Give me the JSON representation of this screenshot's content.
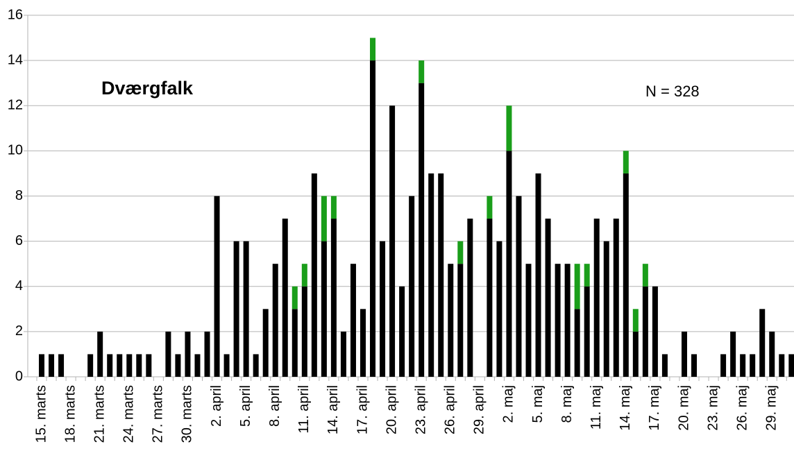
{
  "chart_data": {
    "type": "stacked_bar",
    "annotations": [
      "Dværgfalk",
      "N = 328"
    ],
    "categories": [
      "15. marts",
      null,
      null,
      "18. marts",
      null,
      null,
      "21. marts",
      null,
      null,
      "24. marts",
      null,
      null,
      "27. marts",
      null,
      null,
      "30. marts",
      null,
      null,
      "2. april",
      null,
      null,
      "5. april",
      null,
      null,
      "8. april",
      null,
      null,
      "11. april",
      null,
      null,
      "14. april",
      null,
      null,
      "17. april",
      null,
      null,
      "20. april",
      null,
      null,
      "23. april",
      null,
      null,
      "26. april",
      null,
      null,
      "29. april",
      null,
      null,
      "2. maj",
      null,
      null,
      "5. maj",
      null,
      null,
      "8. maj",
      null,
      null,
      "11. maj",
      null,
      null,
      "14. maj",
      null,
      null,
      "17. maj",
      null,
      null,
      "20. maj",
      null,
      null,
      "23. maj",
      null,
      null,
      "26. maj",
      null,
      null,
      "29. maj",
      null,
      null
    ],
    "series": [
      {
        "color": "#000000",
        "values": [
          1,
          1,
          1,
          0,
          0,
          1,
          2,
          1,
          1,
          1,
          1,
          1,
          0,
          2,
          1,
          2,
          1,
          2,
          8,
          1,
          6,
          6,
          1,
          3,
          5,
          7,
          3,
          4,
          9,
          6,
          7,
          2,
          5,
          3,
          14,
          6,
          12,
          4,
          8,
          13,
          9,
          9,
          5,
          5,
          7,
          0,
          7,
          6,
          10,
          8,
          5,
          9,
          7,
          5,
          5,
          3,
          4,
          7,
          6,
          7,
          9,
          2,
          4,
          4,
          1,
          0,
          2,
          1,
          0,
          0,
          1,
          2,
          1,
          1,
          3,
          2,
          1,
          1
        ]
      },
      {
        "color": "#1a9e1a",
        "values": [
          0,
          0,
          0,
          0,
          0,
          0,
          0,
          0,
          0,
          0,
          0,
          0,
          0,
          0,
          0,
          0,
          0,
          0,
          0,
          0,
          0,
          0,
          0,
          0,
          0,
          0,
          1,
          1,
          0,
          2,
          1,
          0,
          0,
          0,
          1,
          0,
          0,
          0,
          0,
          1,
          0,
          0,
          0,
          1,
          0,
          0,
          1,
          0,
          2,
          0,
          0,
          0,
          0,
          0,
          0,
          2,
          1,
          0,
          0,
          0,
          1,
          1,
          1,
          0,
          0,
          0,
          0,
          0,
          0,
          0,
          0,
          0,
          0,
          0,
          0,
          0,
          0,
          0
        ]
      }
    ],
    "ylim": [
      0,
      16
    ],
    "yticks": [
      0,
      2,
      4,
      6,
      8,
      10,
      12,
      14,
      16
    ],
    "grid": true
  }
}
